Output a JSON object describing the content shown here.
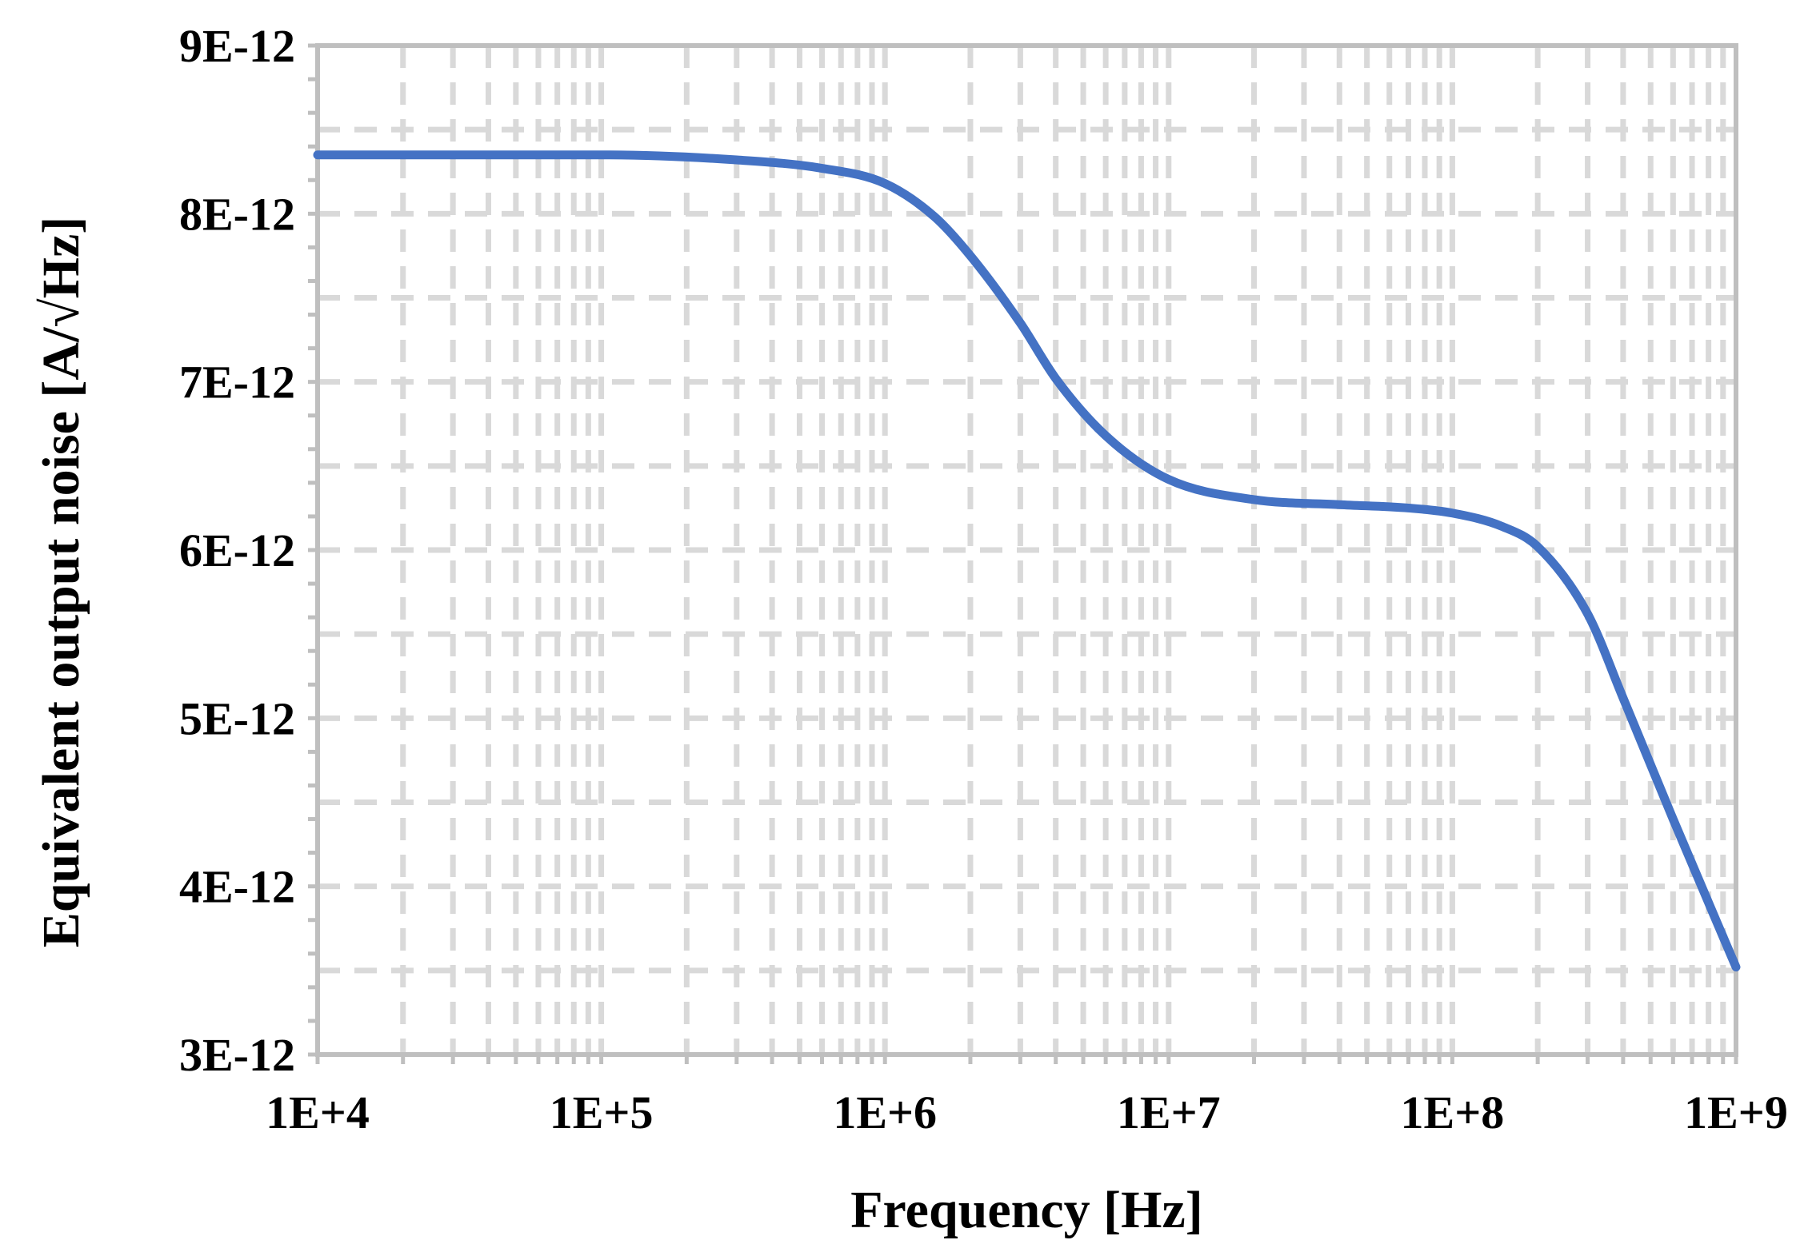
{
  "chart_data": {
    "type": "line",
    "title": "",
    "xlabel": "Frequency [Hz]",
    "ylabel": "Equivalent output noise [A/√Hz]",
    "x_scale": "log",
    "xlim": [
      10000,
      1000000000
    ],
    "ylim": [
      3e-12,
      9e-12
    ],
    "x_tick_labels": [
      "1E+4",
      "1E+5",
      "1E+6",
      "1E+7",
      "1E+8",
      "1E+9"
    ],
    "y_tick_labels": [
      "3E-12",
      "4E-12",
      "5E-12",
      "6E-12",
      "7E-12",
      "8E-12",
      "9E-12"
    ],
    "grid": true,
    "legend": "none",
    "colors": {
      "line": "#4472C4",
      "grid": "#D9D9D9",
      "axis": "#BFBFBF"
    },
    "series": [
      {
        "x": [
          10000,
          100000,
          300000,
          600000,
          1000000,
          1500000,
          2000000,
          3000000,
          4000000,
          6000000,
          10000000,
          20000000,
          40000000,
          70000000,
          100000000,
          150000000,
          200000000,
          300000000,
          400000000,
          600000000,
          1000000000
        ],
        "y": [
          8.35e-12,
          8.35e-12,
          8.32e-12,
          8.27e-12,
          8.18e-12,
          7.98e-12,
          7.75e-12,
          7.35e-12,
          7.02e-12,
          6.68e-12,
          6.42e-12,
          6.3e-12,
          6.27e-12,
          6.25e-12,
          6.22e-12,
          6.14e-12,
          6.02e-12,
          5.62e-12,
          5.12e-12,
          4.4e-12,
          3.52e-12
        ]
      }
    ]
  }
}
